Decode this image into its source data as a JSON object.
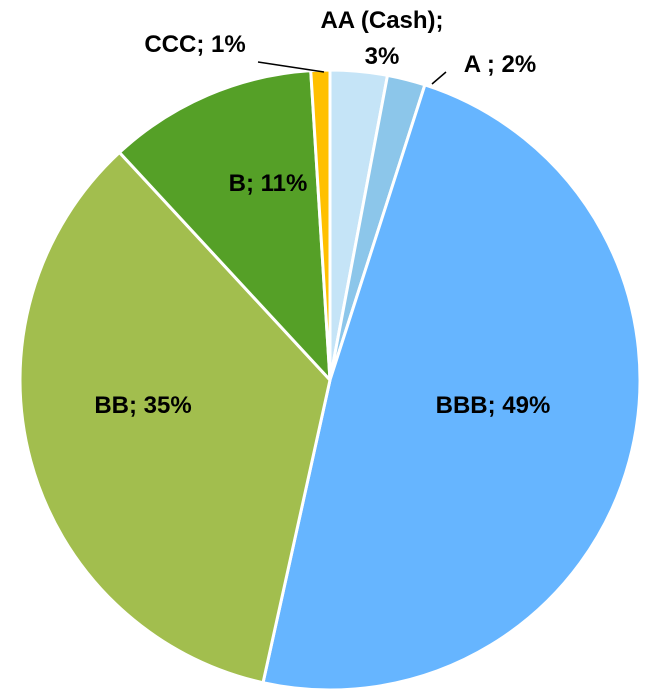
{
  "chart_data": {
    "type": "pie",
    "categories": [
      "AA (Cash)",
      "A",
      "BBB",
      "BB",
      "B",
      "CCC"
    ],
    "values": [
      3,
      2,
      49,
      35,
      11,
      1
    ],
    "value_labels": [
      "AA (Cash);\n3%",
      "A ; 2%",
      "BBB; 49%",
      "BB; 35%",
      "B; 11%",
      "CCC; 1%"
    ],
    "colors": [
      "#c5e4f7",
      "#8cc6ea",
      "#66b5ff",
      "#a2be4e",
      "#55a027",
      "#ffc000"
    ]
  }
}
